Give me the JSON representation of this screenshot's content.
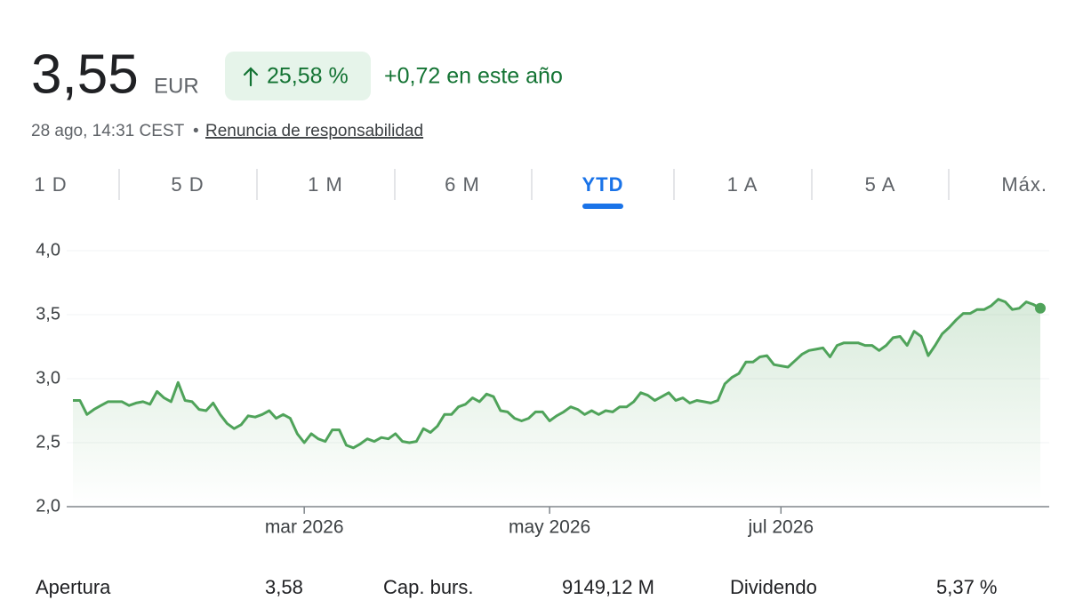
{
  "quote": {
    "price": "3,55",
    "currency": "EUR",
    "change_pct": "25,58 %",
    "change_abs": "+0,72 en este año",
    "timestamp": "28 ago, 14:31 CEST",
    "separator": "•",
    "disclaimer": "Renuncia de responsabilidad"
  },
  "tabs": {
    "items": [
      "1 D",
      "5 D",
      "1 M",
      "6 M",
      "YTD",
      "1 A",
      "5 A",
      "Máx."
    ],
    "active": 4
  },
  "chart_data": {
    "type": "line",
    "color": "#4fa35a",
    "grid": true,
    "values": [
      2.83,
      2.83,
      2.72,
      2.76,
      2.79,
      2.82,
      2.82,
      2.82,
      2.79,
      2.81,
      2.82,
      2.8,
      2.9,
      2.85,
      2.82,
      2.97,
      2.83,
      2.82,
      2.76,
      2.75,
      2.81,
      2.72,
      2.65,
      2.61,
      2.64,
      2.71,
      2.7,
      2.72,
      2.75,
      2.69,
      2.72,
      2.69,
      2.57,
      2.5,
      2.57,
      2.53,
      2.51,
      2.6,
      2.6,
      2.48,
      2.46,
      2.49,
      2.53,
      2.51,
      2.54,
      2.53,
      2.57,
      2.51,
      2.5,
      2.51,
      2.61,
      2.58,
      2.63,
      2.72,
      2.72,
      2.78,
      2.8,
      2.85,
      2.82,
      2.88,
      2.86,
      2.75,
      2.74,
      2.69,
      2.67,
      2.69,
      2.74,
      2.74,
      2.67,
      2.71,
      2.74,
      2.78,
      2.76,
      2.72,
      2.75,
      2.72,
      2.75,
      2.74,
      2.78,
      2.78,
      2.82,
      2.89,
      2.87,
      2.83,
      2.86,
      2.89,
      2.83,
      2.85,
      2.81,
      2.83,
      2.82,
      2.81,
      2.83,
      2.96,
      3.01,
      3.04,
      3.13,
      3.13,
      3.17,
      3.18,
      3.11,
      3.1,
      3.09,
      3.14,
      3.19,
      3.22,
      3.23,
      3.24,
      3.17,
      3.26,
      3.28,
      3.28,
      3.28,
      3.26,
      3.26,
      3.22,
      3.26,
      3.32,
      3.33,
      3.26,
      3.37,
      3.33,
      3.18,
      3.26,
      3.35,
      3.4,
      3.46,
      3.51,
      3.51,
      3.54,
      3.54,
      3.57,
      3.62,
      3.6,
      3.54,
      3.55,
      3.6,
      3.58,
      3.55
    ],
    "xlim": [
      0,
      138
    ],
    "xticks": [
      {
        "value": 33,
        "label": "mar 2026"
      },
      {
        "value": 68,
        "label": "may 2026"
      },
      {
        "value": 101,
        "label": "jul 2026"
      }
    ],
    "ylim": [
      2,
      4
    ],
    "yticks": [
      {
        "value": 2,
        "label": "2,0"
      },
      {
        "value": 2.5,
        "label": "2,5"
      },
      {
        "value": 3,
        "label": "3,0"
      },
      {
        "value": 3.5,
        "label": "3,5"
      },
      {
        "value": 4,
        "label": "4,0"
      }
    ]
  },
  "stats": [
    {
      "label": "Apertura",
      "value": "3,58"
    },
    {
      "label": "Cap. burs.",
      "value": "9149,12 M"
    },
    {
      "label": "Dividendo",
      "value": "5,37 %"
    }
  ]
}
